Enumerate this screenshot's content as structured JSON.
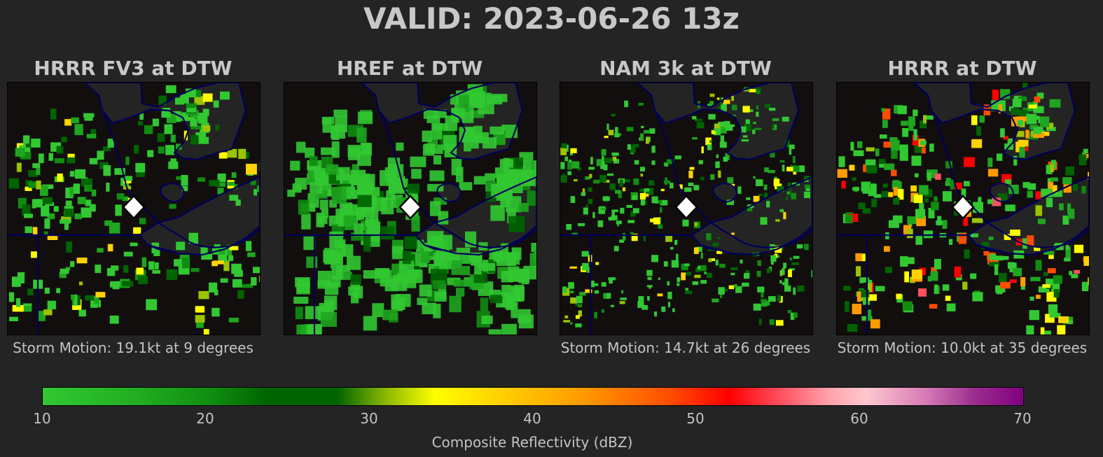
{
  "main_title": "VALID: 2023-06-26 13z",
  "panels": [
    {
      "title": "HRRR FV3 at DTW",
      "storm_motion": "Storm Motion: 19.1kt at 9 degrees"
    },
    {
      "title": "HREF at DTW",
      "storm_motion": ""
    },
    {
      "title": "NAM 3k at DTW",
      "storm_motion": "Storm Motion: 14.7kt at 26 degrees"
    },
    {
      "title": "HRRR at DTW",
      "storm_motion": "Storm Motion: 10.0kt at 35 degrees"
    }
  ],
  "colorbar": {
    "label": "Composite Reflectivity (dBZ)",
    "ticks": [
      "10",
      "20",
      "30",
      "40",
      "50",
      "60",
      "70"
    ],
    "range": [
      10,
      70
    ]
  },
  "colors": {
    "background": "#242424",
    "map_background": "#120e0e",
    "lake": "#242424",
    "boundaries": "#00005a",
    "station_marker": "#ffffff"
  },
  "icons": {
    "station": "diamond-marker-icon"
  }
}
